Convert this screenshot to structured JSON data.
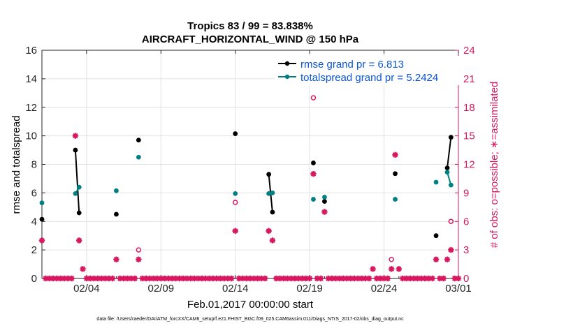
{
  "chart_data": {
    "type": "line",
    "title": "Tropics 83 / 99 = 83.838%",
    "subtitle": "AIRCRAFT_HORIZONTAL_WIND @ 150 hPa",
    "xlabel": "Feb.01,2017 00:00:00 start",
    "ylabel": "rmse and totalspread",
    "y2label": "# of obs: o=possible; ∗=assimilated",
    "footnote": "data file: /Users/raeder/DAI/ATM_forcXX/CAM6_setup/f.e21.FHIST_BGC.f09_025.CAM6assim.011/Diags_NTrS_2017-02/obs_diag_output.nc",
    "xlim": [
      1,
      29
    ],
    "ylim": [
      0,
      16
    ],
    "y2lim": [
      0,
      24
    ],
    "x_ticks": [
      {
        "value": 4,
        "label": "02/04"
      },
      {
        "value": 9,
        "label": "02/09"
      },
      {
        "value": 14,
        "label": "02/14"
      },
      {
        "value": 19,
        "label": "02/19"
      },
      {
        "value": 24,
        "label": "02/24"
      },
      {
        "value": 29,
        "label": "03/01"
      }
    ],
    "y_ticks": [
      0,
      2,
      4,
      6,
      8,
      10,
      12,
      14,
      16
    ],
    "y2_ticks": [
      0,
      3,
      6,
      9,
      12,
      15,
      18,
      21,
      24
    ],
    "grid": true,
    "legend_position": "top-right",
    "colors": {
      "rmse": "#000000",
      "spread": "#008080",
      "obs": "#d6195f",
      "legend_text": "#0a56d6"
    },
    "series": [
      {
        "name": "rmse grand pr = 6.813",
        "axis": "left",
        "color": "#000000",
        "points": [
          [
            1.0,
            4.15
          ],
          [
            3.25,
            9.0
          ],
          [
            3.5,
            4.6
          ],
          [
            6.0,
            4.5
          ],
          [
            7.5,
            9.7
          ],
          [
            14.0,
            10.15
          ],
          [
            16.25,
            7.3
          ],
          [
            16.5,
            4.65
          ],
          [
            19.25,
            8.1
          ],
          [
            20.0,
            5.4
          ],
          [
            24.75,
            7.35
          ],
          [
            27.5,
            3.0
          ],
          [
            28.25,
            7.75
          ],
          [
            28.5,
            9.9
          ]
        ]
      },
      {
        "name": "totalspread grand pr = 5.2424",
        "axis": "left",
        "color": "#008080",
        "points": [
          [
            1.0,
            5.3
          ],
          [
            3.25,
            5.95
          ],
          [
            3.5,
            6.4
          ],
          [
            6.0,
            6.15
          ],
          [
            7.5,
            8.5
          ],
          [
            14.0,
            5.95
          ],
          [
            16.25,
            5.95
          ],
          [
            16.5,
            6.0
          ],
          [
            19.25,
            5.55
          ],
          [
            20.0,
            5.7
          ],
          [
            24.75,
            5.55
          ],
          [
            27.5,
            6.75
          ],
          [
            28.25,
            7.45
          ],
          [
            28.5,
            6.55
          ]
        ]
      },
      {
        "name": "possible",
        "axis": "right",
        "marker": "o",
        "color": "#d6195f",
        "points": [
          [
            7.5,
            3
          ],
          [
            14.0,
            8
          ],
          [
            19.25,
            19
          ],
          [
            24.5,
            2
          ],
          [
            28.5,
            6
          ]
        ]
      },
      {
        "name": "assimilated",
        "axis": "right",
        "marker": "*",
        "color": "#d6195f",
        "points": [
          [
            1.0,
            4
          ],
          [
            3.25,
            15
          ],
          [
            3.5,
            4
          ],
          [
            3.75,
            1
          ],
          [
            6.0,
            2
          ],
          [
            7.5,
            2
          ],
          [
            14.0,
            5
          ],
          [
            16.25,
            5
          ],
          [
            16.5,
            4
          ],
          [
            19.25,
            11
          ],
          [
            20.0,
            7
          ],
          [
            23.25,
            1
          ],
          [
            24.5,
            1
          ],
          [
            24.75,
            13
          ],
          [
            25.0,
            1
          ],
          [
            27.5,
            2
          ],
          [
            28.25,
            2
          ],
          [
            28.5,
            3
          ]
        ]
      },
      {
        "name": "zero obs",
        "axis": "right",
        "marker": "*",
        "color": "#d6195f",
        "points": [
          [
            1.25,
            0
          ],
          [
            1.5,
            0
          ],
          [
            1.75,
            0
          ],
          [
            2.0,
            0
          ],
          [
            2.25,
            0
          ],
          [
            2.5,
            0
          ],
          [
            2.75,
            0
          ],
          [
            3.0,
            0
          ],
          [
            4.0,
            0
          ],
          [
            4.25,
            0
          ],
          [
            4.5,
            0
          ],
          [
            4.75,
            0
          ],
          [
            5.0,
            0
          ],
          [
            5.25,
            0
          ],
          [
            5.5,
            0
          ],
          [
            5.75,
            0
          ],
          [
            6.25,
            0
          ],
          [
            6.5,
            0
          ],
          [
            6.75,
            0
          ],
          [
            7.0,
            0
          ],
          [
            7.25,
            0
          ],
          [
            7.75,
            0
          ],
          [
            8.0,
            0
          ],
          [
            8.25,
            0
          ],
          [
            8.5,
            0
          ],
          [
            8.75,
            0
          ],
          [
            9.0,
            0
          ],
          [
            9.25,
            0
          ],
          [
            9.5,
            0
          ],
          [
            9.75,
            0
          ],
          [
            10.0,
            0
          ],
          [
            10.25,
            0
          ],
          [
            10.5,
            0
          ],
          [
            10.75,
            0
          ],
          [
            11.0,
            0
          ],
          [
            11.25,
            0
          ],
          [
            11.5,
            0
          ],
          [
            11.75,
            0
          ],
          [
            12.0,
            0
          ],
          [
            12.25,
            0
          ],
          [
            12.5,
            0
          ],
          [
            12.75,
            0
          ],
          [
            13.0,
            0
          ],
          [
            13.25,
            0
          ],
          [
            13.5,
            0
          ],
          [
            13.75,
            0
          ],
          [
            14.25,
            0
          ],
          [
            14.5,
            0
          ],
          [
            14.75,
            0
          ],
          [
            15.0,
            0
          ],
          [
            15.25,
            0
          ],
          [
            15.5,
            0
          ],
          [
            15.75,
            0
          ],
          [
            16.0,
            0
          ],
          [
            16.75,
            0
          ],
          [
            17.0,
            0
          ],
          [
            17.25,
            0
          ],
          [
            17.5,
            0
          ],
          [
            17.75,
            0
          ],
          [
            18.0,
            0
          ],
          [
            18.25,
            0
          ],
          [
            18.5,
            0
          ],
          [
            18.75,
            0
          ],
          [
            19.0,
            0
          ],
          [
            19.5,
            0
          ],
          [
            19.75,
            0
          ],
          [
            20.25,
            0
          ],
          [
            20.5,
            0
          ],
          [
            20.75,
            0
          ],
          [
            21.0,
            0
          ],
          [
            21.25,
            0
          ],
          [
            21.5,
            0
          ],
          [
            21.75,
            0
          ],
          [
            22.0,
            0
          ],
          [
            22.25,
            0
          ],
          [
            22.5,
            0
          ],
          [
            22.75,
            0
          ],
          [
            23.0,
            0
          ],
          [
            23.5,
            0
          ],
          [
            23.75,
            0
          ],
          [
            24.0,
            0
          ],
          [
            24.25,
            0
          ],
          [
            25.25,
            0
          ],
          [
            25.5,
            0
          ],
          [
            25.75,
            0
          ],
          [
            26.0,
            0
          ],
          [
            26.25,
            0
          ],
          [
            26.5,
            0
          ],
          [
            26.75,
            0
          ],
          [
            27.0,
            0
          ],
          [
            27.25,
            0
          ],
          [
            27.75,
            0
          ],
          [
            28.0,
            0
          ],
          [
            28.75,
            0
          ],
          [
            29.0,
            0
          ]
        ]
      }
    ],
    "connected_segments": [
      [
        3.25,
        3.5
      ],
      [
        16.25,
        16.5
      ],
      [
        28.25,
        28.5
      ]
    ]
  }
}
